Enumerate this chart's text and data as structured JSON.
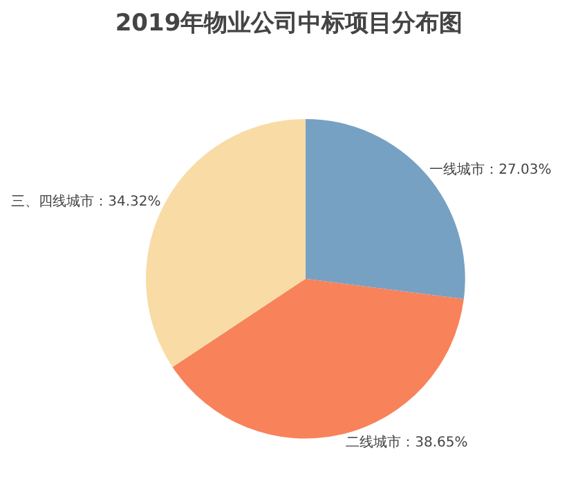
{
  "chart_data": {
    "type": "pie",
    "title": "2019年物业公司中标项目分布图",
    "categories": [
      "一线城市",
      "二线城市",
      "三、四线城市"
    ],
    "values": [
      27.03,
      38.65,
      34.32
    ],
    "value_labels": [
      "27.03%",
      "38.65%",
      "34.32%"
    ],
    "colors": [
      "#77a1c3",
      "#f8825a",
      "#f9dba5"
    ]
  }
}
